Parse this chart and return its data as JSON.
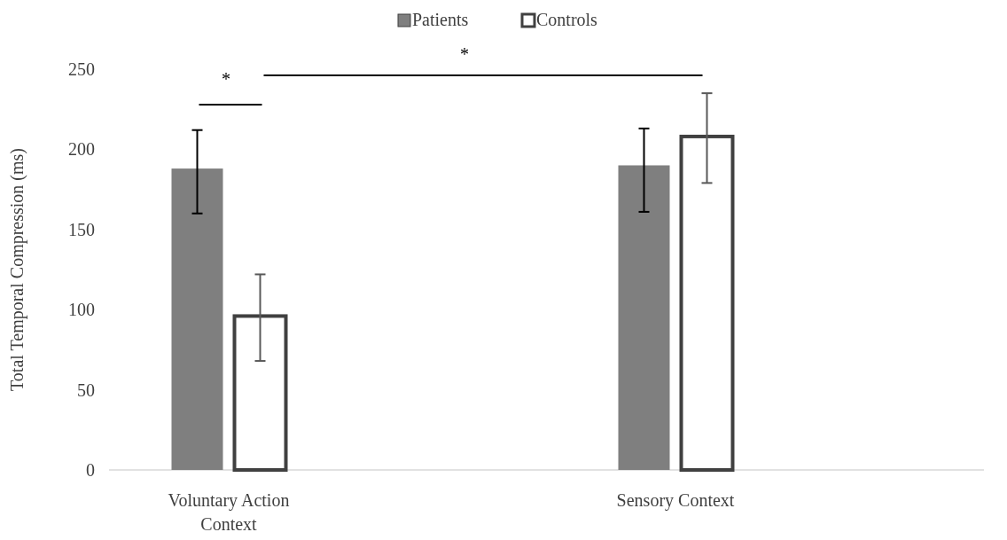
{
  "chart_data": {
    "type": "bar",
    "ylabel": "Total Temporal Compression (ms)",
    "categories": [
      "Voluntary Action Context",
      "Sensory Context"
    ],
    "series": [
      {
        "name": "Patients",
        "color": "#7f7f7f",
        "values": [
          188,
          190
        ],
        "errors": [
          [
            160,
            212
          ],
          [
            161,
            213
          ]
        ]
      },
      {
        "name": "Controls",
        "color": "#ffffff",
        "values": [
          96,
          208
        ],
        "errors": [
          [
            68,
            122
          ],
          [
            179,
            235
          ]
        ]
      }
    ],
    "ylim": [
      0,
      250
    ],
    "yticks": [
      0,
      50,
      100,
      150,
      200,
      250
    ],
    "grid": false,
    "legend": "top",
    "annotations": [
      "*",
      "*"
    ]
  }
}
